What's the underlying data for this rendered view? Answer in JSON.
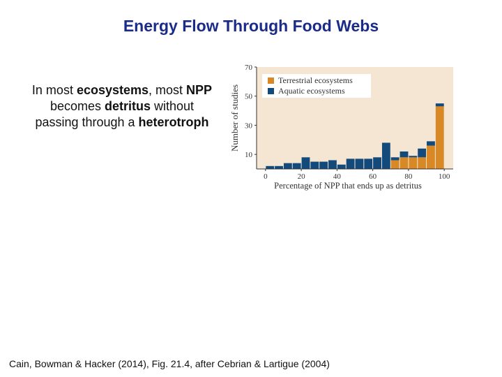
{
  "slide": {
    "title": "Energy Flow Through Food Webs",
    "body": {
      "parts": [
        {
          "text": "In most ",
          "bold": false
        },
        {
          "text": "ecosystems",
          "bold": true
        },
        {
          "text": ", most ",
          "bold": false
        },
        {
          "text": "NPP",
          "bold": true
        },
        {
          "text": " becomes ",
          "bold": false
        },
        {
          "text": "detritus",
          "bold": true
        },
        {
          "text": " without passing through a ",
          "bold": false
        },
        {
          "text": "heterotroph",
          "bold": true
        }
      ]
    },
    "citation": "Cain, Bowman & Hacker (2014), Fig. 21.4, after Cebrian & Lartigue (2004)"
  },
  "chart_data": {
    "type": "bar",
    "stacked": true,
    "xlabel": "Percentage of NPP that ends up as detritus",
    "ylabel": "Number of studies",
    "xlim": [
      -5,
      105
    ],
    "ylim": [
      0,
      70
    ],
    "xticks": [
      0,
      20,
      40,
      60,
      80,
      100
    ],
    "yticks": [
      10,
      30,
      50,
      70
    ],
    "bin_width": 5,
    "x": [
      0,
      5,
      10,
      15,
      20,
      25,
      30,
      35,
      40,
      45,
      50,
      55,
      60,
      65,
      70,
      75,
      80,
      85,
      90,
      95
    ],
    "series": [
      {
        "name": "Terrestrial ecosystems",
        "color": "#d98826",
        "values": [
          0,
          0,
          0,
          0,
          0,
          0,
          0,
          0,
          0,
          0,
          0,
          0,
          0,
          0,
          6,
          8,
          8,
          8,
          16,
          43
        ]
      },
      {
        "name": "Aquatic ecosystems",
        "color": "#134a7c",
        "values": [
          2,
          2,
          4,
          4,
          8,
          5,
          5,
          6,
          3,
          7,
          7,
          7,
          8,
          18,
          2,
          4,
          1,
          6,
          3,
          2
        ]
      }
    ],
    "legend_position": "top-left",
    "background": "#f4e6d2"
  }
}
